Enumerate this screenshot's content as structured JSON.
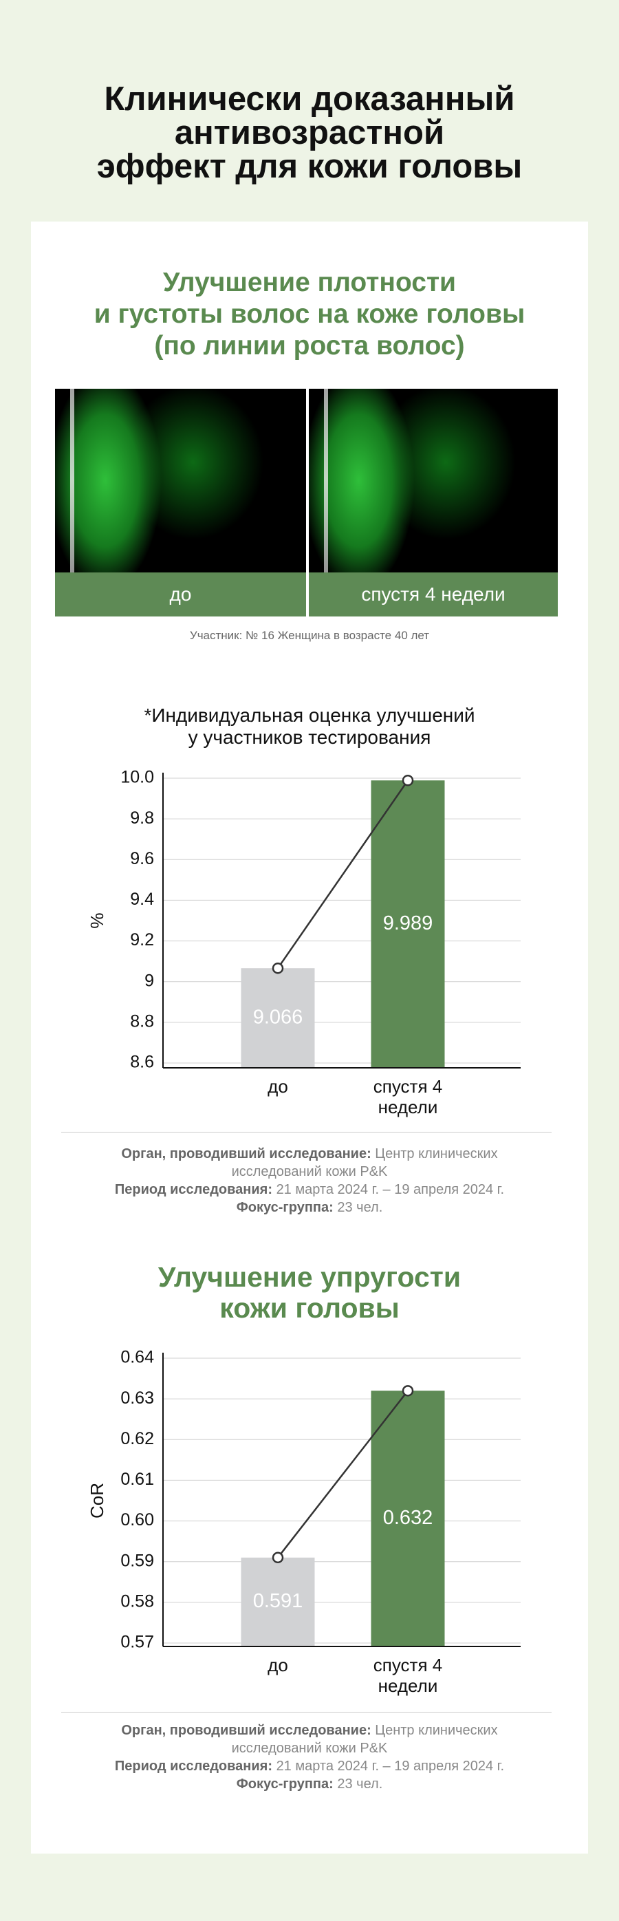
{
  "header": {
    "title": "Клинически доказанный\nантивозрастной\nэффект для кожи головы"
  },
  "density": {
    "title": "Улучшение плотности\nи густоты волос на коже головы\n(по линии роста волос)",
    "images": [
      {
        "label": "до"
      },
      {
        "label": "спустя 4 недели"
      }
    ],
    "caption": "Участник: № 16 Женщина в возрасте 40 лет"
  },
  "chart_data": [
    {
      "type": "bar",
      "title": "*Индивидуальная оценка улучшений\nу участников тестирования",
      "y_label": "%",
      "categories": [
        "до",
        "спустя 4 недели"
      ],
      "values": [
        9.066,
        9.989
      ],
      "colors": [
        "#d1d2d4",
        "#5e8a55"
      ],
      "ylim": [
        8.6,
        10.0
      ],
      "yticks": [
        8.6,
        8.8,
        9.0,
        9.2,
        9.4,
        9.6,
        9.8,
        {
          "value": 10.0,
          "label": "10.0"
        }
      ],
      "grid": true
    },
    {
      "type": "bar",
      "title": "Улучшение упругости\nкожи головы",
      "y_label": "CoR",
      "categories": [
        "до",
        "спустя 4 недели"
      ],
      "values": [
        0.591,
        0.632
      ],
      "colors": [
        "#d1d2d4",
        "#5e8a55"
      ],
      "ylim": [
        0.57,
        0.64
      ],
      "yticks": [
        0.57,
        0.58,
        0.59,
        {
          "value": 0.6,
          "label": "0.60"
        },
        0.61,
        0.62,
        0.63,
        0.64
      ],
      "grid": true
    }
  ],
  "footers": [
    [
      {
        "label": "Орган, проводивший исследование:",
        "text": "Центр клинических исследований кожи P&K"
      },
      {
        "label": "Период исследования:",
        "text": "21 марта 2024 г. – 19 апреля 2024 г."
      },
      {
        "label": "Фокус-группа:",
        "text": "23 чел."
      }
    ],
    [
      {
        "label": "Орган, проводивший исследование:",
        "text": "Центр клинических исследований кожи P&K"
      },
      {
        "label": "Период исследования:",
        "text": "21 марта 2024 г. – 19 апреля 2024 г."
      },
      {
        "label": "Фокус-группа:",
        "text": "23 чел."
      }
    ]
  ]
}
